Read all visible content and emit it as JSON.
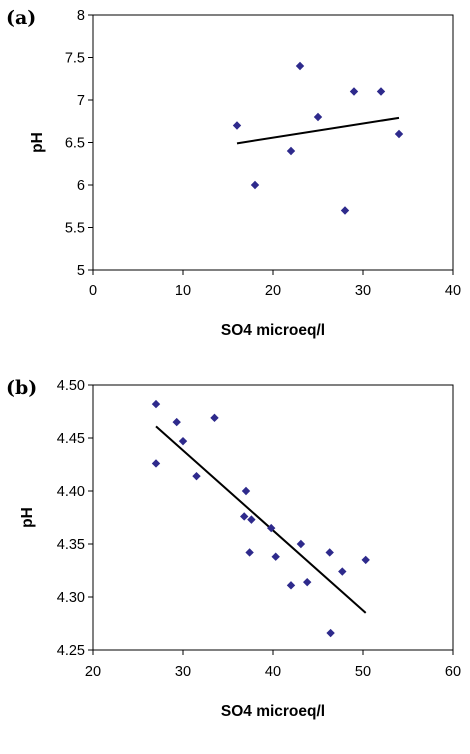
{
  "chart_data": [
    {
      "type": "scatter",
      "panel_label": "(a)",
      "xlabel": "SO4 microeq/l",
      "ylabel": "pH",
      "xlim": [
        0,
        40
      ],
      "ylim": [
        5,
        8
      ],
      "x_ticks": [
        "0",
        "10",
        "20",
        "30",
        "40"
      ],
      "y_ticks": [
        "5",
        "5.5",
        "6",
        "6.5",
        "7",
        "7.5",
        "8"
      ],
      "grid": false,
      "marker_color": "#2e2a8c",
      "points": [
        {
          "x": 16,
          "y": 6.7
        },
        {
          "x": 18,
          "y": 6.0
        },
        {
          "x": 22,
          "y": 6.4
        },
        {
          "x": 23,
          "y": 7.4
        },
        {
          "x": 25,
          "y": 6.8
        },
        {
          "x": 28,
          "y": 5.7
        },
        {
          "x": 29,
          "y": 7.1
        },
        {
          "x": 32,
          "y": 7.1
        },
        {
          "x": 34,
          "y": 6.6
        }
      ],
      "trendline": [
        {
          "x": 16,
          "y": 6.49
        },
        {
          "x": 34,
          "y": 6.79
        }
      ]
    },
    {
      "type": "scatter",
      "panel_label": "(b)",
      "xlabel": "SO4 microeq/l",
      "ylabel": "pH",
      "xlim": [
        20,
        60
      ],
      "ylim": [
        4.25,
        4.5
      ],
      "x_ticks": [
        "20",
        "30",
        "40",
        "50",
        "60"
      ],
      "y_ticks": [
        "4.25",
        "4.30",
        "4.35",
        "4.40",
        "4.45",
        "4.50"
      ],
      "grid": false,
      "marker_color": "#2e2a8c",
      "points": [
        {
          "x": 27.0,
          "y": 4.482
        },
        {
          "x": 27.0,
          "y": 4.426
        },
        {
          "x": 29.3,
          "y": 4.465
        },
        {
          "x": 30.0,
          "y": 4.447
        },
        {
          "x": 31.5,
          "y": 4.414
        },
        {
          "x": 33.5,
          "y": 4.469
        },
        {
          "x": 36.8,
          "y": 4.376
        },
        {
          "x": 37.0,
          "y": 4.4
        },
        {
          "x": 37.6,
          "y": 4.373
        },
        {
          "x": 37.4,
          "y": 4.342
        },
        {
          "x": 39.8,
          "y": 4.365
        },
        {
          "x": 40.3,
          "y": 4.338
        },
        {
          "x": 42.0,
          "y": 4.311
        },
        {
          "x": 43.1,
          "y": 4.35
        },
        {
          "x": 43.8,
          "y": 4.314
        },
        {
          "x": 46.3,
          "y": 4.342
        },
        {
          "x": 46.4,
          "y": 4.266
        },
        {
          "x": 47.7,
          "y": 4.324
        },
        {
          "x": 50.3,
          "y": 4.335
        }
      ],
      "trendline": [
        {
          "x": 27.0,
          "y": 4.461
        },
        {
          "x": 50.3,
          "y": 4.285
        }
      ]
    }
  ]
}
